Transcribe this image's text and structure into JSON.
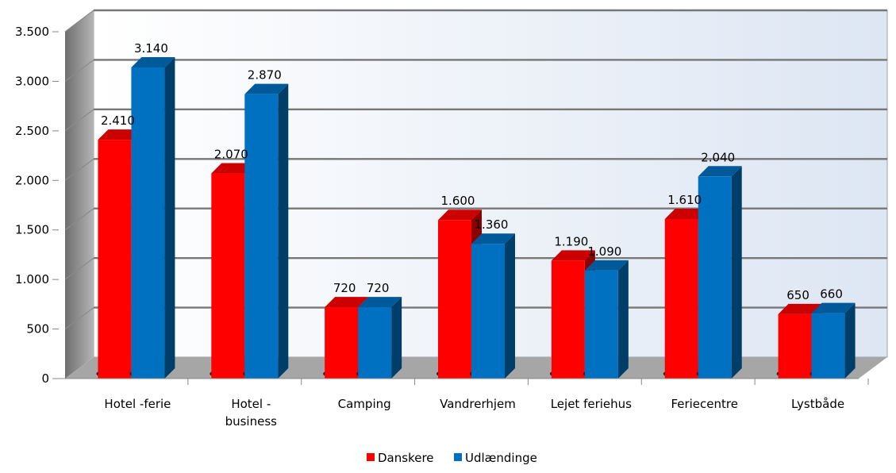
{
  "chart_data": {
    "type": "bar",
    "title": "",
    "xlabel": "",
    "ylabel": "",
    "categories": [
      [
        "Hotel -ferie"
      ],
      [
        "Hotel -",
        "business"
      ],
      [
        "Camping"
      ],
      [
        "Vandrerhjem"
      ],
      [
        "Lejet feriehus"
      ],
      [
        "Feriecentre"
      ],
      [
        "Lystbåde"
      ]
    ],
    "series": [
      {
        "name": "Danskere",
        "color": "#ff0000",
        "values": [
          2410,
          2070,
          720,
          1600,
          1190,
          1610,
          650
        ]
      },
      {
        "name": "Udlændinge",
        "color": "#0070c0",
        "values": [
          3140,
          2870,
          720,
          1360,
          1090,
          2040,
          660
        ]
      }
    ],
    "value_labels": [
      [
        "2.410",
        "2.070",
        "720",
        "1.600",
        "1.190",
        "1.610",
        "650"
      ],
      [
        "3.140",
        "2.870",
        "720",
        "1.360",
        "1.090",
        "2.040",
        "660"
      ]
    ],
    "ylim": [
      0,
      3500
    ],
    "yticks": [
      0,
      500,
      1000,
      1500,
      2000,
      2500,
      3000,
      3500
    ],
    "ytick_labels": [
      "0",
      "500",
      "1.000",
      "1.500",
      "2.000",
      "2.500",
      "3.000",
      "3.500"
    ],
    "grid": true,
    "legend_position": "bottom"
  }
}
